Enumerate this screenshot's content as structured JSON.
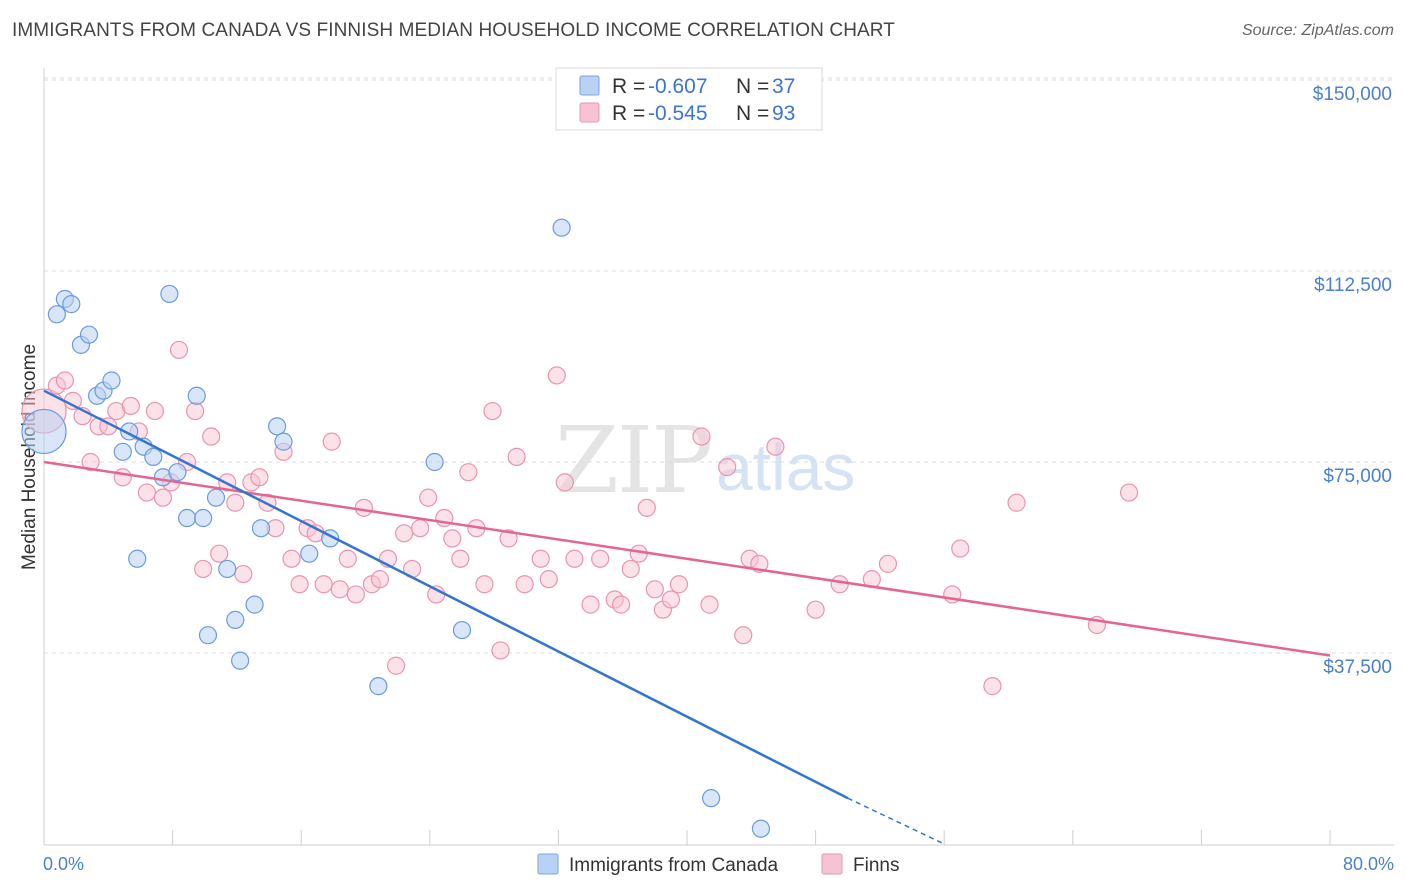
{
  "header": {
    "title": "IMMIGRANTS FROM CANADA VS FINNISH MEDIAN HOUSEHOLD INCOME CORRELATION CHART",
    "source": "Source: ZipAtlas.com"
  },
  "watermark": {
    "zip": "ZIP",
    "atlas": "atlas"
  },
  "colors": {
    "blue": "#4a7fd1",
    "blue_fill": "#b9d1f2",
    "blue_line": "#3575d1",
    "pink": "#e07898",
    "pink_fill": "#f7c3d2",
    "pink_line": "#e2668f",
    "grid": "#dddddd"
  },
  "legend_top": [
    {
      "r_label": "R = ",
      "r_value": "-0.607",
      "n_label": "N = ",
      "n_value": "37",
      "series": "blue"
    },
    {
      "r_label": "R = ",
      "r_value": "-0.545",
      "n_label": "N = ",
      "n_value": "93",
      "series": "pink"
    }
  ],
  "legend_bottom": [
    {
      "label": "Immigrants from Canada",
      "series": "blue"
    },
    {
      "label": "Finns",
      "series": "pink"
    }
  ],
  "chart_data": {
    "type": "scatter",
    "title": "IMMIGRANTS FROM CANADA VS FINNISH MEDIAN HOUSEHOLD INCOME CORRELATION CHART",
    "xlabel": "",
    "ylabel": "Median Household Income",
    "xlim": [
      0,
      80
    ],
    "ylim": [
      0,
      155000
    ],
    "x_tick_labels": [
      "0.0%",
      "80.0%"
    ],
    "y_ticks": [
      37500,
      75000,
      112500,
      150000
    ],
    "y_tick_labels": [
      "$37,500",
      "$75,000",
      "$112,500",
      "$150,000"
    ],
    "grid": true,
    "legend_placement": "top-center and bottom",
    "series": [
      {
        "name": "Immigrants from Canada",
        "color": "#4a7fd1",
        "r": -0.607,
        "n": 37,
        "trend": {
          "x": [
            0,
            50
          ],
          "y": [
            89000,
            9000
          ],
          "dashed_to": [
            56,
            0
          ]
        },
        "points": [
          {
            "x": 0.0,
            "y": 81000,
            "big": true
          },
          {
            "x": 0.8,
            "y": 104000
          },
          {
            "x": 1.3,
            "y": 107000
          },
          {
            "x": 1.7,
            "y": 106000
          },
          {
            "x": 2.3,
            "y": 98000
          },
          {
            "x": 2.8,
            "y": 100000
          },
          {
            "x": 3.3,
            "y": 88000
          },
          {
            "x": 3.7,
            "y": 89000
          },
          {
            "x": 4.2,
            "y": 91000
          },
          {
            "x": 4.9,
            "y": 77000
          },
          {
            "x": 5.3,
            "y": 81000
          },
          {
            "x": 5.8,
            "y": 56000
          },
          {
            "x": 6.2,
            "y": 78000
          },
          {
            "x": 6.8,
            "y": 76000
          },
          {
            "x": 7.4,
            "y": 72000
          },
          {
            "x": 7.8,
            "y": 108000
          },
          {
            "x": 8.3,
            "y": 73000
          },
          {
            "x": 8.9,
            "y": 64000
          },
          {
            "x": 9.5,
            "y": 88000
          },
          {
            "x": 9.9,
            "y": 64000
          },
          {
            "x": 10.2,
            "y": 41000
          },
          {
            "x": 10.7,
            "y": 68000
          },
          {
            "x": 11.4,
            "y": 54000
          },
          {
            "x": 11.9,
            "y": 44000
          },
          {
            "x": 12.2,
            "y": 36000
          },
          {
            "x": 13.1,
            "y": 47000
          },
          {
            "x": 13.5,
            "y": 62000
          },
          {
            "x": 14.5,
            "y": 82000
          },
          {
            "x": 14.9,
            "y": 79000
          },
          {
            "x": 16.5,
            "y": 57000
          },
          {
            "x": 17.8,
            "y": 60000
          },
          {
            "x": 20.8,
            "y": 31000
          },
          {
            "x": 24.3,
            "y": 75000
          },
          {
            "x": 26.0,
            "y": 42000
          },
          {
            "x": 32.2,
            "y": 121000
          },
          {
            "x": 41.5,
            "y": 9000
          },
          {
            "x": 44.6,
            "y": 3000
          }
        ]
      },
      {
        "name": "Finns",
        "color": "#e07898",
        "r": -0.545,
        "n": 93,
        "trend": {
          "x": [
            0,
            80
          ],
          "y": [
            75000,
            37000
          ]
        },
        "points": [
          {
            "x": 0.0,
            "y": 85000,
            "big": true
          },
          {
            "x": 0.8,
            "y": 90000
          },
          {
            "x": 1.3,
            "y": 91000
          },
          {
            "x": 1.8,
            "y": 87000
          },
          {
            "x": 2.4,
            "y": 84000
          },
          {
            "x": 2.9,
            "y": 75000
          },
          {
            "x": 3.4,
            "y": 82000
          },
          {
            "x": 4.0,
            "y": 82000
          },
          {
            "x": 4.5,
            "y": 85000
          },
          {
            "x": 4.9,
            "y": 72000
          },
          {
            "x": 5.4,
            "y": 86000
          },
          {
            "x": 5.9,
            "y": 81000
          },
          {
            "x": 6.4,
            "y": 69000
          },
          {
            "x": 6.9,
            "y": 85000
          },
          {
            "x": 7.4,
            "y": 68000
          },
          {
            "x": 7.9,
            "y": 71000
          },
          {
            "x": 8.4,
            "y": 97000
          },
          {
            "x": 8.9,
            "y": 75000
          },
          {
            "x": 9.4,
            "y": 85000
          },
          {
            "x": 9.9,
            "y": 54000
          },
          {
            "x": 10.4,
            "y": 80000
          },
          {
            "x": 10.9,
            "y": 57000
          },
          {
            "x": 11.4,
            "y": 71000
          },
          {
            "x": 11.9,
            "y": 67000
          },
          {
            "x": 12.4,
            "y": 53000
          },
          {
            "x": 12.9,
            "y": 71000
          },
          {
            "x": 13.4,
            "y": 72000
          },
          {
            "x": 13.9,
            "y": 67000
          },
          {
            "x": 14.4,
            "y": 62000
          },
          {
            "x": 14.9,
            "y": 77000
          },
          {
            "x": 15.4,
            "y": 56000
          },
          {
            "x": 15.9,
            "y": 51000
          },
          {
            "x": 16.4,
            "y": 62000
          },
          {
            "x": 16.9,
            "y": 61000
          },
          {
            "x": 17.4,
            "y": 51000
          },
          {
            "x": 17.9,
            "y": 79000
          },
          {
            "x": 18.4,
            "y": 50000
          },
          {
            "x": 18.9,
            "y": 56000
          },
          {
            "x": 19.4,
            "y": 49000
          },
          {
            "x": 19.9,
            "y": 66000
          },
          {
            "x": 20.4,
            "y": 51000
          },
          {
            "x": 20.9,
            "y": 52000
          },
          {
            "x": 21.4,
            "y": 56000
          },
          {
            "x": 21.9,
            "y": 35000
          },
          {
            "x": 22.4,
            "y": 61000
          },
          {
            "x": 22.9,
            "y": 54000
          },
          {
            "x": 23.4,
            "y": 62000
          },
          {
            "x": 23.9,
            "y": 68000
          },
          {
            "x": 24.4,
            "y": 49000
          },
          {
            "x": 24.9,
            "y": 64000
          },
          {
            "x": 25.4,
            "y": 60000
          },
          {
            "x": 25.9,
            "y": 56000
          },
          {
            "x": 26.4,
            "y": 73000
          },
          {
            "x": 26.9,
            "y": 62000
          },
          {
            "x": 27.4,
            "y": 51000
          },
          {
            "x": 27.9,
            "y": 85000
          },
          {
            "x": 28.4,
            "y": 38000
          },
          {
            "x": 28.9,
            "y": 60000
          },
          {
            "x": 29.4,
            "y": 76000
          },
          {
            "x": 29.9,
            "y": 51000
          },
          {
            "x": 30.9,
            "y": 56000
          },
          {
            "x": 31.4,
            "y": 52000
          },
          {
            "x": 31.9,
            "y": 92000
          },
          {
            "x": 32.4,
            "y": 71000
          },
          {
            "x": 33.0,
            "y": 56000
          },
          {
            "x": 34.0,
            "y": 47000
          },
          {
            "x": 34.6,
            "y": 56000
          },
          {
            "x": 35.5,
            "y": 48000
          },
          {
            "x": 35.9,
            "y": 47000
          },
          {
            "x": 36.5,
            "y": 54000
          },
          {
            "x": 37.0,
            "y": 57000
          },
          {
            "x": 37.5,
            "y": 66000
          },
          {
            "x": 38.0,
            "y": 50000
          },
          {
            "x": 38.5,
            "y": 46000
          },
          {
            "x": 39.0,
            "y": 48000
          },
          {
            "x": 39.5,
            "y": 51000
          },
          {
            "x": 40.9,
            "y": 80000
          },
          {
            "x": 41.4,
            "y": 47000
          },
          {
            "x": 42.5,
            "y": 74000
          },
          {
            "x": 43.5,
            "y": 41000
          },
          {
            "x": 43.9,
            "y": 56000
          },
          {
            "x": 44.5,
            "y": 55000
          },
          {
            "x": 45.5,
            "y": 78000
          },
          {
            "x": 48.0,
            "y": 46000
          },
          {
            "x": 49.5,
            "y": 51000
          },
          {
            "x": 51.5,
            "y": 52000
          },
          {
            "x": 52.5,
            "y": 55000
          },
          {
            "x": 56.5,
            "y": 49000
          },
          {
            "x": 57.0,
            "y": 58000
          },
          {
            "x": 59.0,
            "y": 31000
          },
          {
            "x": 60.5,
            "y": 67000
          },
          {
            "x": 65.5,
            "y": 43000
          },
          {
            "x": 67.5,
            "y": 69000
          }
        ]
      }
    ]
  }
}
